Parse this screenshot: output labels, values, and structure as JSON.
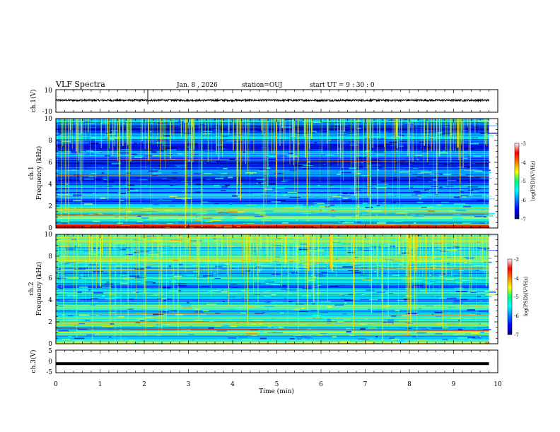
{
  "header": {
    "title": "VLF Spectra",
    "date": "Jan. 8 , 2026",
    "station": "station=OUJ",
    "start": "start UT = 9 : 30 : 0"
  },
  "chart_data": [
    {
      "type": "line",
      "panel": "ch1-waveform",
      "ylabel": "ch.1(V)",
      "ylim": [
        -10,
        10
      ],
      "yticks": [
        "10",
        "-10"
      ],
      "series": [
        {
          "values": [
            1,
            1.2,
            0.8,
            1.1,
            0.9,
            1.3,
            0.7,
            1.0
          ]
        }
      ]
    },
    {
      "type": "heatmap",
      "panel": "ch1-spectrogram",
      "ylabel": "ch.1 Frequency (kHz)",
      "ylim": [
        0,
        10
      ],
      "yticks": [
        "0",
        "2",
        "4",
        "6",
        "8",
        "10"
      ],
      "colorbar": {
        "label": "log(PSD)(V²/Hz)",
        "ticks": [
          "-3",
          "-4",
          "-5",
          "-6",
          "-7"
        ],
        "range": [
          -7,
          -3
        ]
      }
    },
    {
      "type": "heatmap",
      "panel": "ch2-spectrogram",
      "ylabel": "ch.2 Frequency (kHz)",
      "ylim": [
        0,
        10
      ],
      "yticks": [
        "0",
        "2",
        "4",
        "6",
        "8",
        "10"
      ],
      "colorbar": {
        "label": "log(PSD)(V²/Hz)",
        "ticks": [
          "-3",
          "-4",
          "-5",
          "-6",
          "-7"
        ],
        "range": [
          -7,
          -3
        ]
      }
    },
    {
      "type": "line",
      "panel": "ch3-waveform",
      "ylabel": "ch.3(V)",
      "ylim": [
        -5,
        5
      ],
      "yticks": [
        "5",
        "0",
        "-5"
      ],
      "series": [
        {
          "values": [
            -1,
            -1,
            -1,
            -1,
            -1
          ]
        }
      ]
    }
  ],
  "xaxis": {
    "label": "Time (min)",
    "range": [
      0,
      10
    ],
    "ticks": [
      "0",
      "1",
      "2",
      "3",
      "4",
      "5",
      "6",
      "7",
      "8",
      "9",
      "10"
    ],
    "data_end": 9.8
  },
  "labels": {
    "ch1_wave": "ch.1(V)",
    "ch1_a": "ch.1",
    "ch1_b": "Frequency (kHz)",
    "ch2_a": "ch.2",
    "ch2_b": "Frequency (kHz)",
    "ch3_wave": "ch.3(V)",
    "cb_label": "log(PSD)(V²/Hz)"
  }
}
